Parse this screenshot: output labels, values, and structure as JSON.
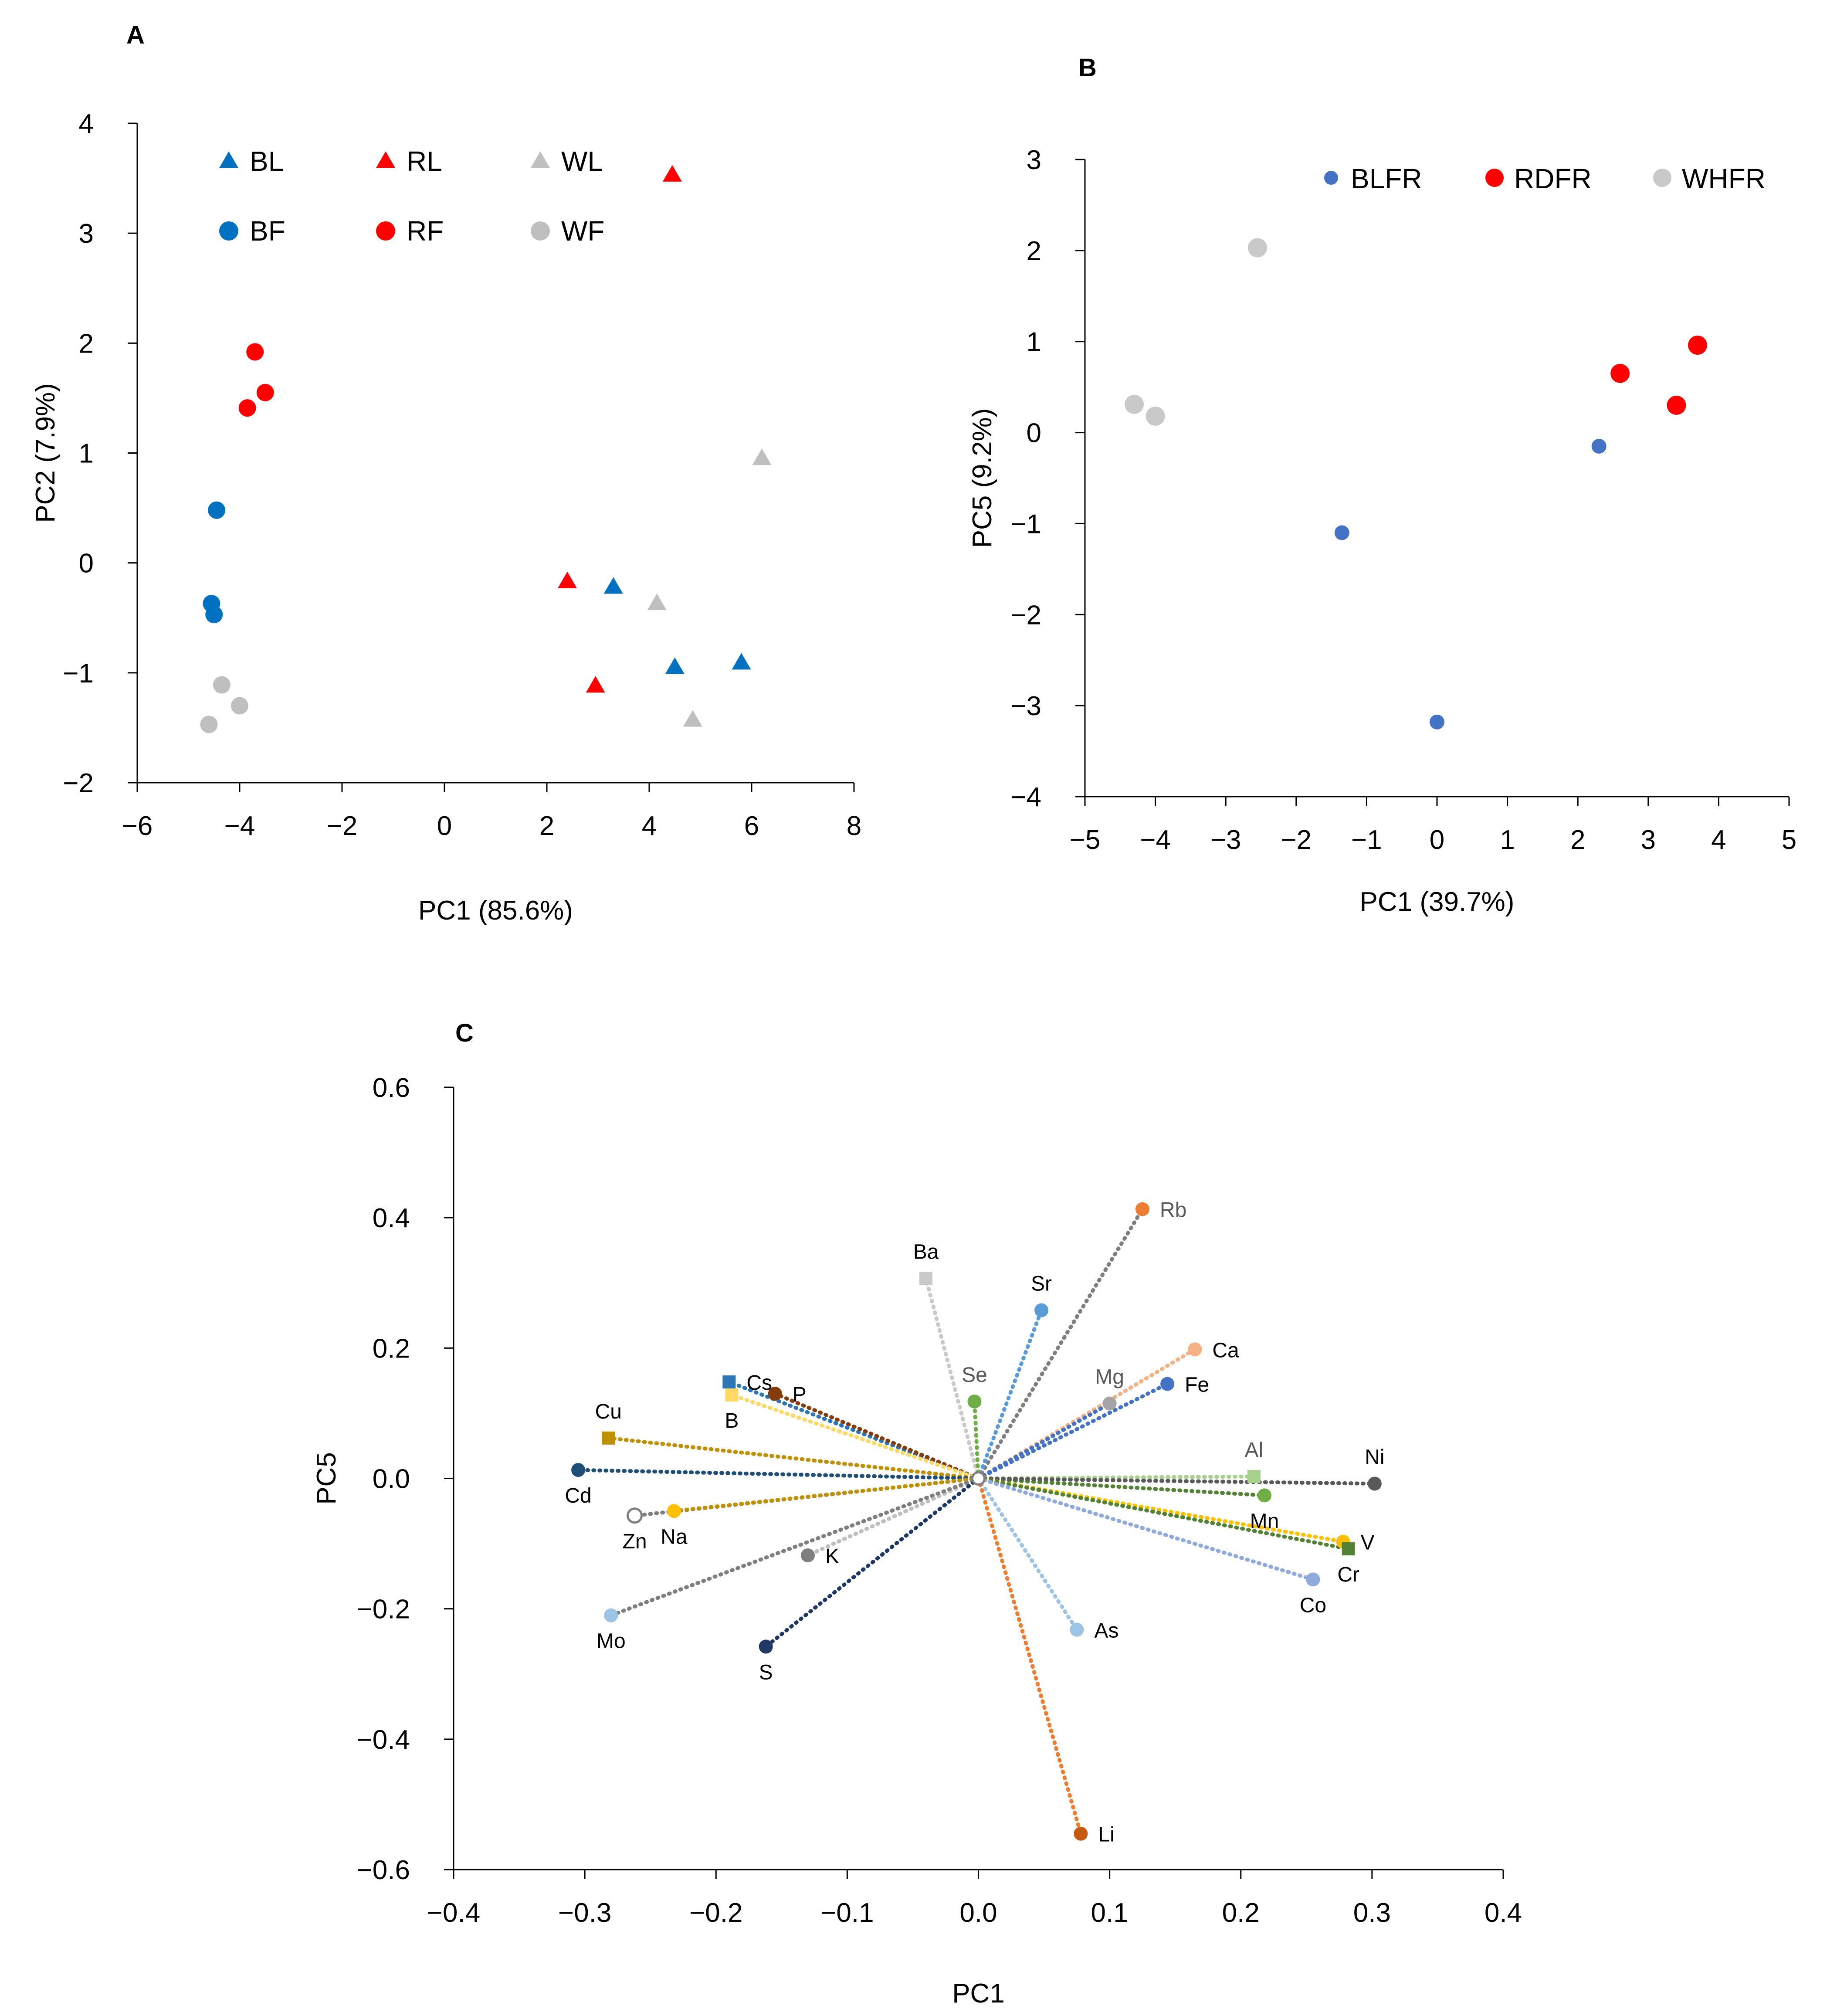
{
  "chart_data": [
    {
      "panel": "A",
      "type": "scatter",
      "xlabel": "PC1 (85.6%)",
      "ylabel": "PC2 (7.9%)",
      "xlim": [
        -6,
        8
      ],
      "ylim": [
        -2,
        4
      ],
      "xticks": [
        -6,
        -4,
        -2,
        0,
        2,
        4,
        6,
        8
      ],
      "yticks": [
        -2,
        -1,
        0,
        1,
        2,
        3,
        4
      ],
      "legend": "top, 3 columns x 2 rows",
      "series": [
        {
          "name": "BL",
          "marker": "triangle",
          "color": "#0070c0",
          "points": [
            [
              3.3,
              -0.22
            ],
            [
              4.5,
              -0.95
            ],
            [
              5.8,
              -0.91
            ]
          ]
        },
        {
          "name": "RL",
          "marker": "triangle",
          "color": "#ff0000",
          "points": [
            [
              4.45,
              3.53
            ],
            [
              2.4,
              -0.17
            ],
            [
              2.95,
              -1.12
            ]
          ]
        },
        {
          "name": "WL",
          "marker": "triangle",
          "color": "#bfbfbf",
          "points": [
            [
              6.2,
              0.95
            ],
            [
              4.15,
              -0.37
            ],
            [
              4.85,
              -1.43
            ]
          ]
        },
        {
          "name": "BF",
          "marker": "circle",
          "color": "#0070c0",
          "points": [
            [
              -4.45,
              0.48
            ],
            [
              -4.55,
              -0.37
            ],
            [
              -4.5,
              -0.47
            ]
          ]
        },
        {
          "name": "RF",
          "marker": "circle",
          "color": "#ff0000",
          "points": [
            [
              -3.7,
              1.92
            ],
            [
              -3.5,
              1.55
            ],
            [
              -3.85,
              1.41
            ]
          ]
        },
        {
          "name": "WF",
          "marker": "circle",
          "color": "#bfbfbf",
          "points": [
            [
              -4.35,
              -1.11
            ],
            [
              -4.0,
              -1.3
            ],
            [
              -4.6,
              -1.47
            ]
          ]
        }
      ]
    },
    {
      "panel": "B",
      "type": "scatter",
      "xlabel": "PC1 (39.7%)",
      "ylabel": "PC5 (9.2%)",
      "xlim": [
        -5,
        5
      ],
      "ylim": [
        -4,
        3
      ],
      "xticks": [
        -5,
        -4,
        -3,
        -2,
        -1,
        0,
        1,
        2,
        3,
        4,
        5
      ],
      "yticks": [
        -4,
        -3,
        -2,
        -1,
        0,
        1,
        2,
        3
      ],
      "legend": "top-right, single row",
      "series": [
        {
          "name": "BLFR",
          "marker": "circle-small",
          "color": "#4472c4",
          "points": [
            [
              -1.35,
              -1.1
            ],
            [
              2.3,
              -0.15
            ],
            [
              0.0,
              -3.18
            ]
          ]
        },
        {
          "name": "RDFR",
          "marker": "circle",
          "color": "#ff0000",
          "points": [
            [
              2.6,
              0.65
            ],
            [
              3.7,
              0.96
            ],
            [
              3.4,
              0.3
            ]
          ]
        },
        {
          "name": "WHFR",
          "marker": "circle",
          "color": "#c9c9c9",
          "points": [
            [
              -2.55,
              2.03
            ],
            [
              -4.3,
              0.31
            ],
            [
              -4.0,
              0.18
            ]
          ]
        }
      ]
    },
    {
      "panel": "C",
      "type": "scatter",
      "subtype": "loading vectors from origin",
      "xlabel": "PC1",
      "ylabel": "PC5",
      "xlim": [
        -0.4,
        0.4
      ],
      "ylim": [
        -0.6,
        0.6
      ],
      "xticks": [
        "−0.4",
        "−0.3",
        "−0.2",
        "−0.1",
        "0.0",
        "0.1",
        "0.2",
        "0.3",
        "0.4"
      ],
      "yticks": [
        "0.6",
        "0.4",
        "0.2",
        "0.0",
        "−0.2",
        "−0.4",
        "−0.6"
      ],
      "vectors": [
        {
          "name": "Rb",
          "x": 0.125,
          "y": 0.413,
          "color": "#ed7d31",
          "line": "#7f7f7f",
          "marker": "circle",
          "label_pos": "right"
        },
        {
          "name": "Ba",
          "x": -0.04,
          "y": 0.307,
          "color": "#c9c9c9",
          "line": "#c9c9c9",
          "marker": "square",
          "label_pos": "above"
        },
        {
          "name": "Sr",
          "x": 0.048,
          "y": 0.258,
          "color": "#5b9bd5",
          "line": "#5b9bd5",
          "marker": "circle",
          "label_pos": "above"
        },
        {
          "name": "Ca",
          "x": 0.165,
          "y": 0.198,
          "color": "#f4b183",
          "line": "#f4b183",
          "marker": "circle",
          "label_pos": "right"
        },
        {
          "name": "Se",
          "x": -0.003,
          "y": 0.118,
          "color": "#70ad47",
          "line": "#70ad47",
          "marker": "circle",
          "label_pos": "above"
        },
        {
          "name": "Mg",
          "x": 0.1,
          "y": 0.115,
          "color": "#a5a5a5",
          "line": "#4472c4",
          "marker": "circle",
          "label_pos": "above"
        },
        {
          "name": "Fe",
          "x": 0.144,
          "y": 0.145,
          "color": "#4472c4",
          "line": "#4472c4",
          "marker": "circle",
          "label_pos": "right"
        },
        {
          "name": "Cs",
          "x": -0.19,
          "y": 0.148,
          "color": "#2e75b6",
          "line": "#2e75b6",
          "marker": "square",
          "label_pos": "right"
        },
        {
          "name": "P",
          "x": -0.155,
          "y": 0.13,
          "color": "#843c0c",
          "line": "#843c0c",
          "marker": "circle",
          "label_pos": "right"
        },
        {
          "name": "B",
          "x": -0.188,
          "y": 0.128,
          "color": "#ffd966",
          "line": "#ffd966",
          "marker": "square",
          "label_pos": "below"
        },
        {
          "name": "Cu",
          "x": -0.282,
          "y": 0.062,
          "color": "#bf9000",
          "line": "#bf9000",
          "marker": "square",
          "label_pos": "above"
        },
        {
          "name": "Cd",
          "x": -0.305,
          "y": 0.013,
          "color": "#1f4e79",
          "line": "#1f4e79",
          "marker": "circle",
          "label_pos": "below"
        },
        {
          "name": "Zn",
          "x": -0.262,
          "y": -0.057,
          "color": "#ffffff",
          "line": "#7f7f7f",
          "marker": "circle-open",
          "label_pos": "below"
        },
        {
          "name": "Na",
          "x": -0.232,
          "y": -0.05,
          "color": "#ffc000",
          "line": "#bf9000",
          "marker": "circle",
          "label_pos": "below"
        },
        {
          "name": "K",
          "x": -0.13,
          "y": -0.118,
          "color": "#7f7f7f",
          "line": "#bfbfbf",
          "marker": "circle",
          "label_pos": "right"
        },
        {
          "name": "Mo",
          "x": -0.28,
          "y": -0.21,
          "color": "#9dc3e6",
          "line": "#7f7f7f",
          "marker": "circle",
          "label_pos": "below"
        },
        {
          "name": "S",
          "x": -0.162,
          "y": -0.258,
          "color": "#1f3864",
          "line": "#1f3864",
          "marker": "circle",
          "label_pos": "below"
        },
        {
          "name": "As",
          "x": 0.075,
          "y": -0.232,
          "color": "#9dc3e6",
          "line": "#9dc3e6",
          "marker": "circle",
          "label_pos": "right"
        },
        {
          "name": "Li",
          "x": 0.078,
          "y": -0.545,
          "color": "#c55a11",
          "line": "#ed7d31",
          "marker": "circle",
          "label_pos": "right"
        },
        {
          "name": "Al",
          "x": 0.21,
          "y": 0.003,
          "color": "#a9d18e",
          "line": "#a9d18e",
          "marker": "square",
          "label_pos": "above"
        },
        {
          "name": "Mn",
          "x": 0.218,
          "y": -0.026,
          "color": "#70ad47",
          "line": "#548235",
          "marker": "circle",
          "label_pos": "below"
        },
        {
          "name": "Ni",
          "x": 0.302,
          "y": -0.008,
          "color": "#595959",
          "line": "#595959",
          "marker": "circle",
          "label_pos": "above"
        },
        {
          "name": "V",
          "x": 0.278,
          "y": -0.097,
          "color": "#ffc000",
          "line": "#ffc000",
          "marker": "circle",
          "label_pos": "right"
        },
        {
          "name": "Cr",
          "x": 0.282,
          "y": -0.108,
          "color": "#548235",
          "line": "#548235",
          "marker": "square",
          "label_pos": "below"
        },
        {
          "name": "Co",
          "x": 0.255,
          "y": -0.155,
          "color": "#8faadc",
          "line": "#8faadc",
          "marker": "circle",
          "label_pos": "below"
        }
      ]
    }
  ]
}
